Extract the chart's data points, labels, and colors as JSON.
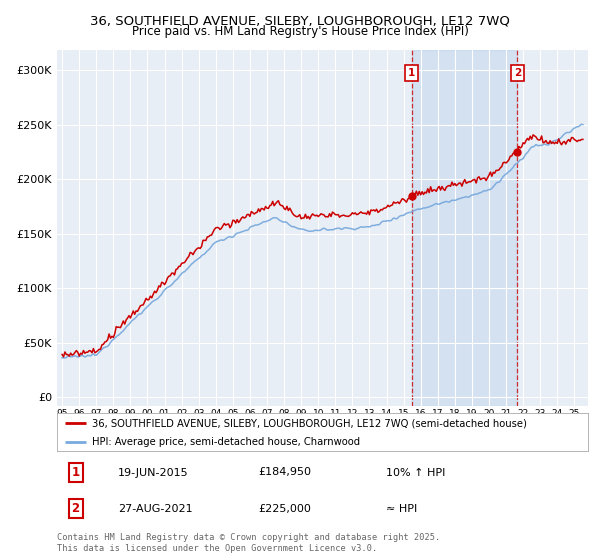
{
  "title_line1": "36, SOUTHFIELD AVENUE, SILEBY, LOUGHBOROUGH, LE12 7WQ",
  "title_line2": "Price paid vs. HM Land Registry's House Price Index (HPI)",
  "yticks": [
    0,
    50000,
    100000,
    150000,
    200000,
    250000,
    300000
  ],
  "ytick_labels": [
    "£0",
    "£50K",
    "£100K",
    "£150K",
    "£200K",
    "£250K",
    "£300K"
  ],
  "ylim": [
    -8000,
    318000
  ],
  "legend_line1": "36, SOUTHFIELD AVENUE, SILEBY, LOUGHBOROUGH, LE12 7WQ (semi-detached house)",
  "legend_line2": "HPI: Average price, semi-detached house, Charnwood",
  "annotation1_label": "1",
  "annotation1_date": "19-JUN-2015",
  "annotation1_price": "£184,950",
  "annotation1_hpi": "10% ↑ HPI",
  "annotation2_label": "2",
  "annotation2_date": "27-AUG-2021",
  "annotation2_price": "£225,000",
  "annotation2_hpi": "≈ HPI",
  "footer": "Contains HM Land Registry data © Crown copyright and database right 2025.\nThis data is licensed under the Open Government Licence v3.0.",
  "red_color": "#cc0000",
  "blue_color": "#7aaadd",
  "blue_fill": "#ddeeff",
  "marker1_x": 2015.47,
  "marker2_x": 2021.66,
  "background_color": "#e8eef5"
}
